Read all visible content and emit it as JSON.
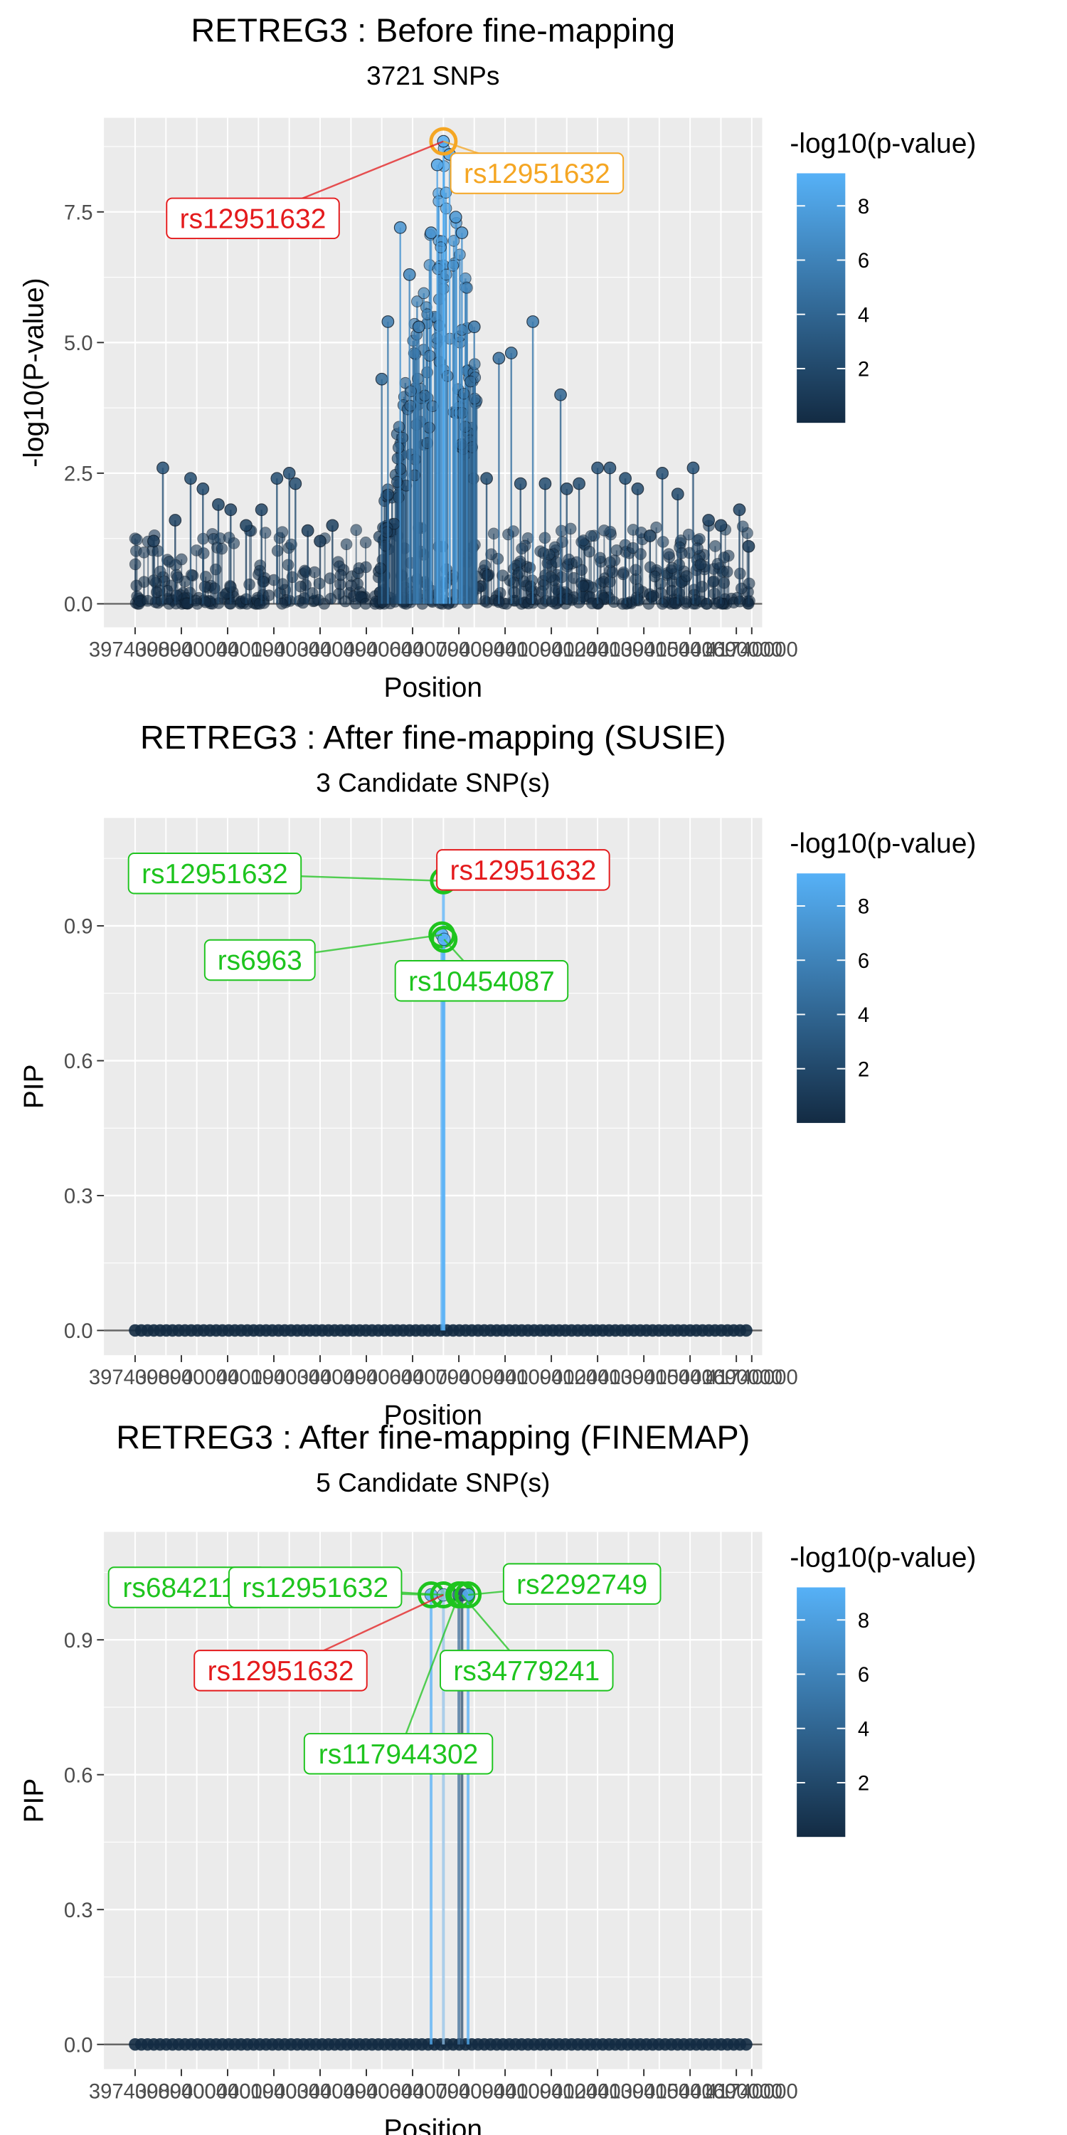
{
  "colors": {
    "panel_bg": "#ebebeb",
    "grid_major": "#ffffff",
    "gradient_low": "#132b43",
    "gradient_high": "#56b1f7",
    "lead_red": "#e41a1c",
    "orange": "#f5a623",
    "green": "#1ec41e"
  },
  "chart_data": [
    {
      "type": "scatter",
      "title": "RETREG3 : Before fine-mapping",
      "subtitle": "3721 SNPs",
      "xlabel": "Position",
      "ylabel": "-log10(P-value)",
      "x_ticks": [
        39740000,
        39890000,
        40040000,
        40190000,
        40340000,
        40490000,
        40640000,
        40790000,
        40940000,
        41090000,
        41240000,
        41390000,
        41540000,
        41690000,
        41740000
      ],
      "x_tick_labels": [
        "39740000",
        "39890000",
        "40040000",
        "40190000",
        "40340000",
        "40490000",
        "40640000",
        "40790000",
        "40940000",
        "41090000",
        "41240000",
        "41390000",
        "41540000",
        "41690000",
        "41740000"
      ],
      "xlim": [
        39740000,
        41740000
      ],
      "ylim": [
        0,
        9
      ],
      "y_ticks": [
        0,
        2.5,
        5,
        7.5
      ],
      "y_tick_labels": [
        "0.0",
        "2.5",
        "5.0",
        "7.5"
      ],
      "points": [
        {
          "x": 39800000,
          "y": 1.2
        },
        {
          "x": 39830000,
          "y": 2.6
        },
        {
          "x": 39870000,
          "y": 1.6
        },
        {
          "x": 39920000,
          "y": 2.4
        },
        {
          "x": 39960000,
          "y": 2.2
        },
        {
          "x": 40010000,
          "y": 1.9
        },
        {
          "x": 40050000,
          "y": 1.8
        },
        {
          "x": 40100000,
          "y": 1.5
        },
        {
          "x": 40150000,
          "y": 1.8
        },
        {
          "x": 40200000,
          "y": 2.4
        },
        {
          "x": 40240000,
          "y": 2.5
        },
        {
          "x": 40260000,
          "y": 2.3
        },
        {
          "x": 40300000,
          "y": 1.4
        },
        {
          "x": 40340000,
          "y": 1.2
        },
        {
          "x": 40380000,
          "y": 1.5
        },
        {
          "x": 40540000,
          "y": 4.3
        },
        {
          "x": 40560000,
          "y": 5.4
        },
        {
          "x": 40600000,
          "y": 7.2
        },
        {
          "x": 40630000,
          "y": 6.3
        },
        {
          "x": 40660000,
          "y": 5.3
        },
        {
          "x": 40700000,
          "y": 7.1
        },
        {
          "x": 40720000,
          "y": 8.4
        },
        {
          "x": 40740000,
          "y": 8.85
        },
        {
          "x": 40760000,
          "y": 8.6
        },
        {
          "x": 40780000,
          "y": 7.4
        },
        {
          "x": 40800000,
          "y": 7.1
        },
        {
          "x": 40840000,
          "y": 5.3
        },
        {
          "x": 40880000,
          "y": 2.4
        },
        {
          "x": 40920000,
          "y": 4.7
        },
        {
          "x": 40960000,
          "y": 4.8
        },
        {
          "x": 40990000,
          "y": 2.3
        },
        {
          "x": 41030000,
          "y": 5.4
        },
        {
          "x": 41070000,
          "y": 2.3
        },
        {
          "x": 41120000,
          "y": 4.0
        },
        {
          "x": 41140000,
          "y": 2.2
        },
        {
          "x": 41180000,
          "y": 2.3
        },
        {
          "x": 41240000,
          "y": 2.6
        },
        {
          "x": 41280000,
          "y": 2.6
        },
        {
          "x": 41330000,
          "y": 2.4
        },
        {
          "x": 41370000,
          "y": 2.2
        },
        {
          "x": 41410000,
          "y": 1.3
        },
        {
          "x": 41450000,
          "y": 2.5
        },
        {
          "x": 41500000,
          "y": 2.1
        },
        {
          "x": 41550000,
          "y": 2.6
        },
        {
          "x": 41600000,
          "y": 1.6
        },
        {
          "x": 41640000,
          "y": 1.5
        },
        {
          "x": 41700000,
          "y": 1.8
        },
        {
          "x": 41730000,
          "y": 1.1
        }
      ],
      "labels": [
        {
          "text": "rs12951632",
          "color": "red",
          "snp_x": 40740000,
          "snp_y": 8.85
        },
        {
          "text": "rs12951632",
          "color": "orange",
          "snp_x": 40740000,
          "snp_y": 8.85
        }
      ],
      "highlight": {
        "x": 40740000,
        "y": 8.85,
        "color": "orange"
      },
      "legend": {
        "title": "-log10(p-value)",
        "ticks": [
          2,
          4,
          6,
          8
        ],
        "range": [
          0,
          9.2
        ],
        "placement": "right"
      }
    },
    {
      "type": "scatter",
      "title": "RETREG3 : After fine-mapping (SUSIE)",
      "subtitle": "3 Candidate SNP(s)",
      "xlabel": "Position",
      "ylabel": "PIP",
      "x_ticks": [
        39740000,
        39890000,
        40040000,
        40190000,
        40340000,
        40490000,
        40640000,
        40790000,
        40940000,
        41090000,
        41240000,
        41390000,
        41540000,
        41690000,
        41740000
      ],
      "x_tick_labels": [
        "39740000",
        "39890000",
        "40040000",
        "40190000",
        "40340000",
        "40490000",
        "40640000",
        "40790000",
        "40940000",
        "41090000",
        "41240000",
        "41390000",
        "41540000",
        "41690000",
        "41740000"
      ],
      "xlim": [
        39740000,
        41740000
      ],
      "ylim": [
        0,
        1.1
      ],
      "y_ticks": [
        0,
        0.3,
        0.6,
        0.9
      ],
      "y_tick_labels": [
        "0.0",
        "0.3",
        "0.6",
        "0.9"
      ],
      "points": [
        {
          "x": 40740000,
          "y": 1.0
        },
        {
          "x": 40735000,
          "y": 0.88
        },
        {
          "x": 40742000,
          "y": 0.87
        }
      ],
      "labels": [
        {
          "text": "rs12951632",
          "color": "green",
          "snp_x": 40740000,
          "snp_y": 1.0
        },
        {
          "text": "rs12951632",
          "color": "red",
          "snp_x": 40740000,
          "snp_y": 1.0
        },
        {
          "text": "rs6963",
          "color": "green",
          "snp_x": 40735000,
          "snp_y": 0.88
        },
        {
          "text": "rs10454087",
          "color": "green",
          "snp_x": 40742000,
          "snp_y": 0.87
        }
      ],
      "legend": {
        "title": "-log10(p-value)",
        "ticks": [
          2,
          4,
          6,
          8
        ],
        "range": [
          0,
          9.2
        ],
        "placement": "right"
      }
    },
    {
      "type": "scatter",
      "title": "RETREG3 : After fine-mapping (FINEMAP)",
      "subtitle": "5 Candidate SNP(s)",
      "xlabel": "Position",
      "ylabel": "PIP",
      "x_ticks": [
        39740000,
        39890000,
        40040000,
        40190000,
        40340000,
        40490000,
        40640000,
        40790000,
        40940000,
        41090000,
        41240000,
        41390000,
        41540000,
        41690000,
        41740000
      ],
      "x_tick_labels": [
        "39740000",
        "39890000",
        "40040000",
        "40190000",
        "40340000",
        "40490000",
        "40640000",
        "40790000",
        "40940000",
        "41090000",
        "41240000",
        "41390000",
        "41540000",
        "41690000",
        "41740000"
      ],
      "xlim": [
        39740000,
        41740000
      ],
      "ylim": [
        0,
        1.1
      ],
      "y_ticks": [
        0,
        0.3,
        0.6,
        0.9
      ],
      "y_tick_labels": [
        "0.0",
        "0.3",
        "0.6",
        "0.9"
      ],
      "points": [
        {
          "x": 40700000,
          "y": 1.0
        },
        {
          "x": 40740000,
          "y": 1.0
        },
        {
          "x": 40790000,
          "y": 1.0
        },
        {
          "x": 40800000,
          "y": 1.0
        },
        {
          "x": 40820000,
          "y": 1.0
        }
      ],
      "labels": [
        {
          "text": "rs6842114",
          "color": "green",
          "snp_x": 40700000,
          "snp_y": 1.0
        },
        {
          "text": "rs12951632",
          "color": "green",
          "snp_x": 40740000,
          "snp_y": 1.0
        },
        {
          "text": "rs12951632",
          "color": "red",
          "snp_x": 40740000,
          "snp_y": 1.0
        },
        {
          "text": "rs2292749",
          "color": "green",
          "snp_x": 40820000,
          "snp_y": 1.0
        },
        {
          "text": "rs34779241",
          "color": "green",
          "snp_x": 40800000,
          "snp_y": 1.0
        },
        {
          "text": "rs117944302",
          "color": "green",
          "snp_x": 40790000,
          "snp_y": 1.0
        }
      ],
      "legend": {
        "title": "-log10(p-value)",
        "ticks": [
          2,
          4,
          6,
          8
        ],
        "range": [
          0,
          9.2
        ],
        "placement": "right"
      }
    }
  ]
}
